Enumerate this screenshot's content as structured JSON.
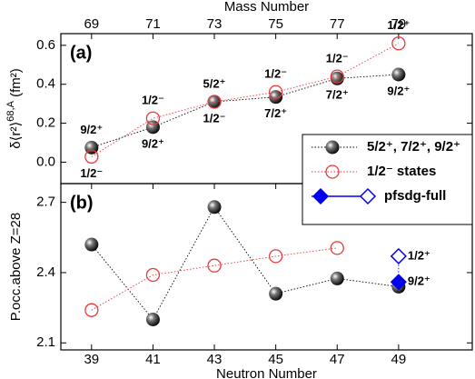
{
  "chart_data": [
    {
      "type": "line",
      "panel_label": "(a)",
      "x2_label": "Mass Number",
      "x2lim": [
        68,
        81.4
      ],
      "x2ticks": [
        69,
        71,
        73,
        75,
        77,
        79
      ],
      "xlim": [
        38,
        51.4
      ],
      "y_label": "δ⟨r²⟩",
      "y_label_sup": "68,A",
      "y_label_unit": " (fm²)",
      "ylim": [
        -0.11,
        0.66
      ],
      "yticks": [
        {
          "value": 0,
          "label": "0.0"
        },
        0.2,
        0.4,
        0.6
      ],
      "series": [
        {
          "name": "5/2⁺, 7/2⁺, 9/2⁺",
          "color": "#000000",
          "marker": "sphere",
          "x": [
            39,
            41,
            43,
            45,
            47,
            49
          ],
          "values": [
            0.075,
            0.18,
            0.31,
            0.335,
            0.43,
            0.45
          ],
          "point_labels": [
            "9/2⁺",
            "9/2⁺",
            "5/2⁺",
            "7/2⁺",
            "7/2⁺",
            "9/2⁺"
          ],
          "point_label_colors": [
            "#000000",
            "#000000",
            "#000000",
            "#000000",
            "#000000",
            "#000000"
          ]
        },
        {
          "name": "1/2⁻ states",
          "color": "#e8383d",
          "marker": "open-circle",
          "x": [
            39,
            41,
            43,
            45,
            47,
            49
          ],
          "values": [
            0.028,
            0.225,
            0.31,
            0.36,
            0.44,
            0.61
          ],
          "point_labels": [
            "1/2⁻",
            "1/2⁻",
            "1/2⁻",
            "1/2⁻",
            "1/2⁻",
            "1/2⁺"
          ],
          "point_label_colors": [
            "#e8383d",
            "#e8383d",
            "#e8383d",
            "#e8383d",
            "#e8383d",
            "#1f1fd0"
          ]
        }
      ]
    },
    {
      "type": "line",
      "panel_label": "(b)",
      "x_label": "Neutron Number",
      "xlim": [
        38,
        51.4
      ],
      "xticks": [
        39,
        41,
        43,
        45,
        47,
        49
      ],
      "y_label": "P.occ.above Z=28",
      "ylim": [
        2.07,
        2.78
      ],
      "yticks": [
        2.1,
        2.4,
        2.7
      ],
      "series": [
        {
          "color": "#000000",
          "marker": "sphere",
          "x": [
            39,
            41,
            43,
            45,
            47,
            49
          ],
          "values": [
            2.52,
            2.2,
            2.68,
            2.31,
            2.375,
            2.34
          ]
        },
        {
          "color": "#e8383d",
          "marker": "open-circle",
          "x": [
            39,
            41,
            43,
            45,
            47
          ],
          "values": [
            2.24,
            2.39,
            2.43,
            2.47,
            2.505
          ]
        },
        {
          "name": "pfsdg-full",
          "color": "#0000ee",
          "markers": [
            "filled-diamond",
            "open-diamond"
          ],
          "x": [
            49,
            49
          ],
          "values": [
            2.36,
            2.47
          ],
          "point_labels": [
            "9/2⁺",
            "1/2⁺"
          ],
          "point_label_colors": [
            "#0000ee",
            "#0000ee"
          ]
        }
      ]
    }
  ]
}
